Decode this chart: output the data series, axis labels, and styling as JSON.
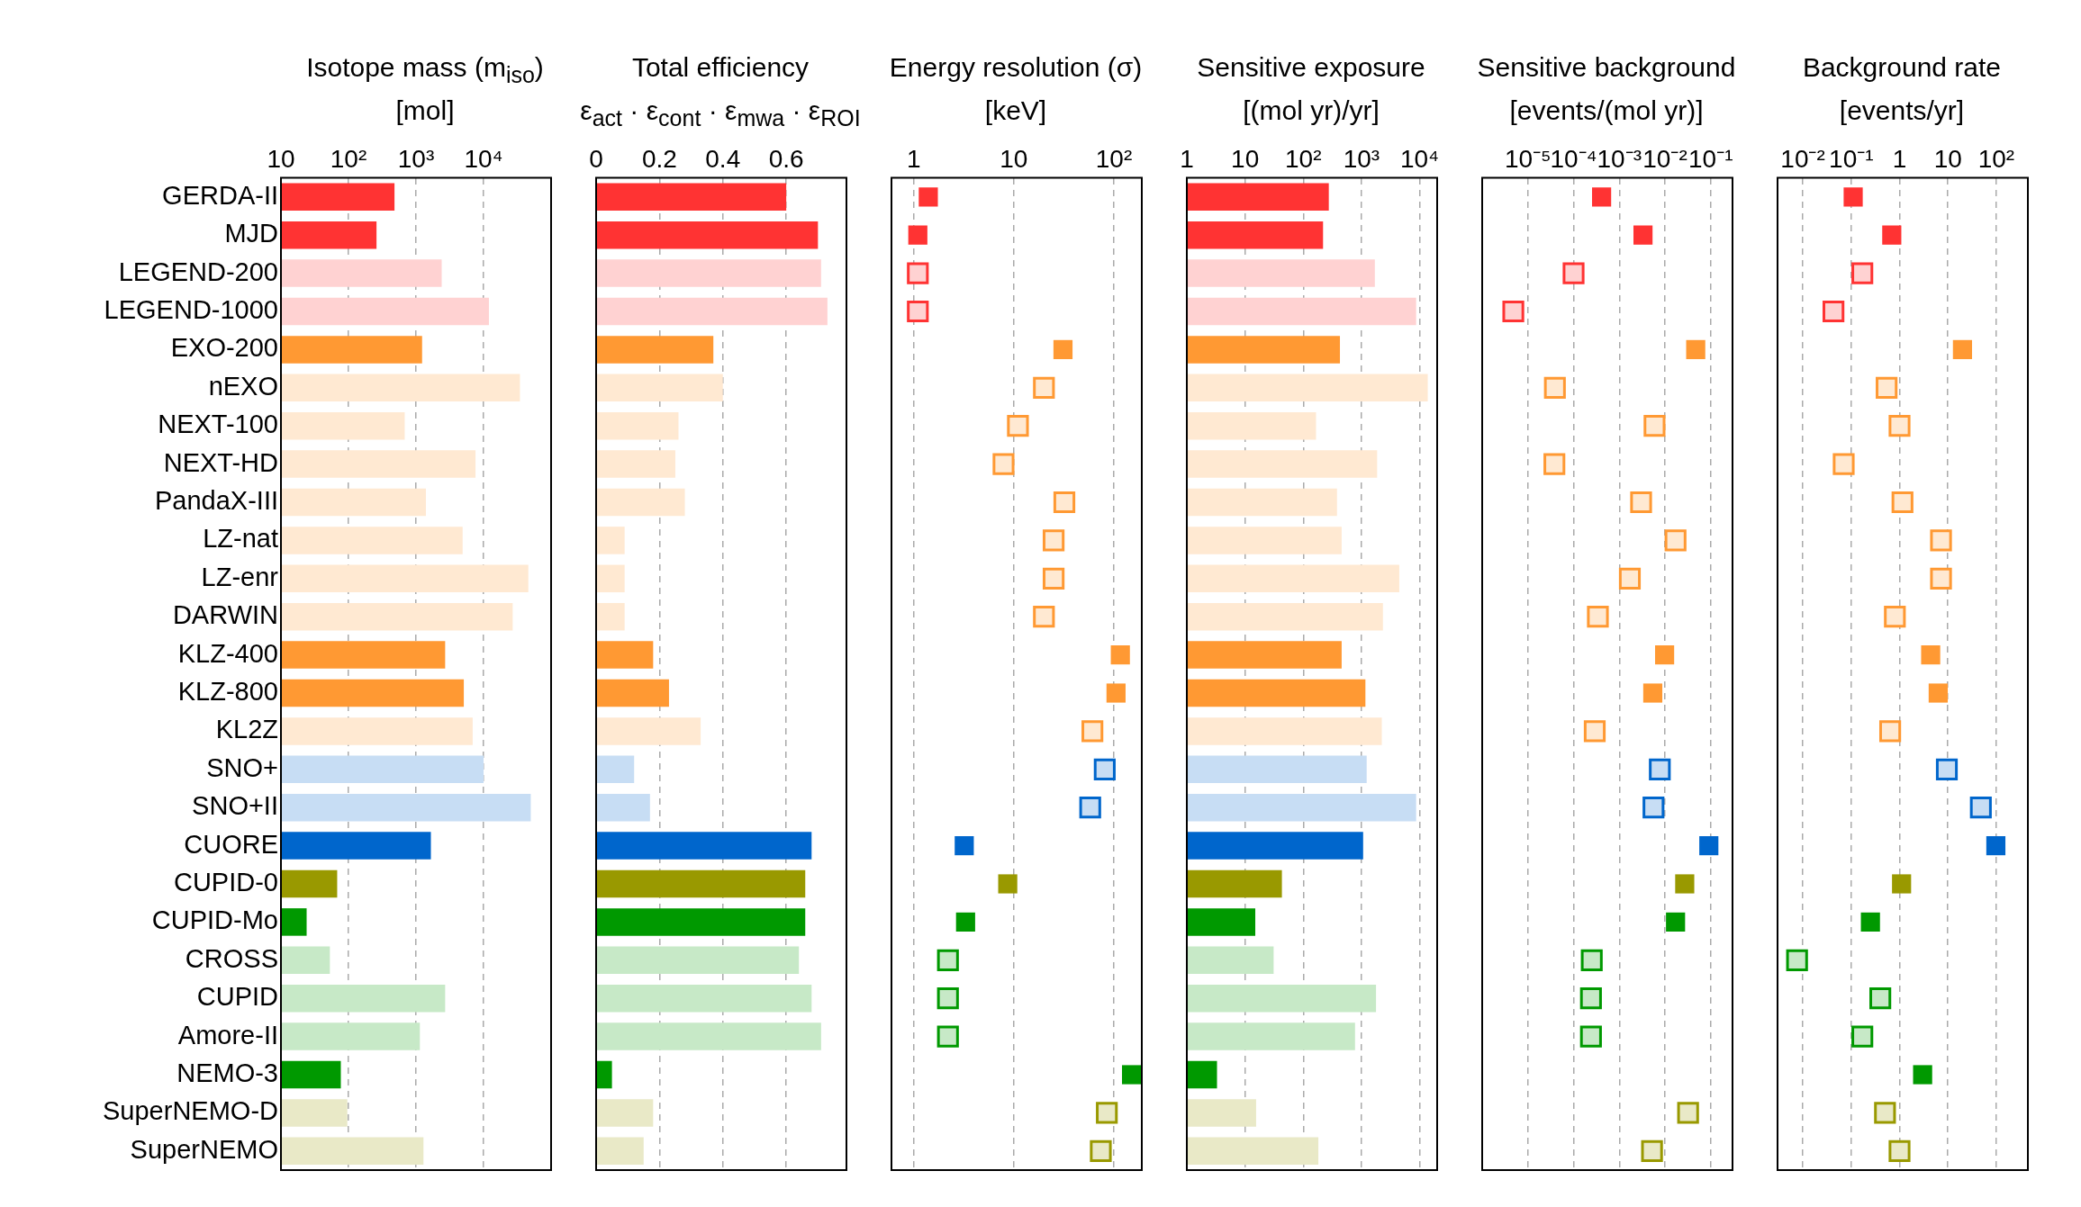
{
  "chart_data": [
    {
      "type": "bar",
      "orientation": "horizontal",
      "title": "Isotope mass (m$_{iso}$)",
      "subtitle": "[mol]",
      "categories": [
        "GERDA-II",
        "MJD",
        "LEGEND-200",
        "LEGEND-1000",
        "EXO-200",
        "nEXO",
        "NEXT-100",
        "NEXT-HD",
        "PandaX-III",
        "LZ-nat",
        "LZ-enr",
        "DARWIN",
        "KLZ-400",
        "KLZ-800",
        "KL2Z",
        "SNO+",
        "SNO+II",
        "CUORE",
        "CUPID-0",
        "CUPID-Mo",
        "CROSS",
        "CUPID",
        "Amore-II",
        "NEMO-3",
        "SuperNEMO-D",
        "SuperNEMO"
      ],
      "log": "x",
      "xlim": [
        10,
        100000
      ],
      "xticks": [
        10,
        {
          "value": 100,
          "label": "10²"
        },
        {
          "value": 1000,
          "label": "10³"
        },
        {
          "value": 10000,
          "label": "10⁴"
        }
      ],
      "grid": "x",
      "series": [
        {
          "colors": [
            "#ff3333",
            "#ff3333",
            "#ff3333",
            "#ff3333",
            "#ff9933",
            "#ff9933",
            "#ff9933",
            "#ff9933",
            "#ff9933",
            "#ff9933",
            "#ff9933",
            "#ff9933",
            "#ff9933",
            "#ff9933",
            "#ff9933",
            "#0066cc",
            "#0066cc",
            "#0066cc",
            "#999900",
            "#009900",
            "#009900",
            "#009900",
            "#009900",
            "#009900",
            "#999900",
            "#999900"
          ],
          "values": [
            480,
            260,
            null,
            null,
            1230,
            null,
            null,
            null,
            null,
            null,
            null,
            null,
            2700,
            5100,
            null,
            null,
            null,
            1660,
            68,
            24,
            null,
            null,
            null,
            77,
            null,
            null
          ]
        },
        {
          "colors": [
            "#ffd2d2",
            "#ffd2d2",
            "#ffd2d2",
            "#ffd2d2",
            "#ffe9d2",
            "#ffe9d2",
            "#ffe9d2",
            "#ffe9d2",
            "#ffe9d2",
            "#ffe9d2",
            "#ffe9d2",
            "#ffe9d2",
            "#ffe9d2",
            "#ffe9d2",
            "#ffe9d2",
            "#c7ddf4",
            "#c7ddf4",
            "#c7ddf4",
            "#e9e9c7",
            "#c7e9c7",
            "#c7e9c7",
            "#c7e9c7",
            "#c7e9c7",
            "#c7e9c7",
            "#e9e9c7",
            "#e9e9c7"
          ],
          "values": [
            null,
            null,
            2400,
            12000,
            null,
            34600,
            680,
            7600,
            1400,
            4900,
            46000,
            27000,
            null,
            null,
            6900,
            10000,
            50000,
            null,
            null,
            null,
            53,
            2700,
            1140,
            null,
            96,
            1290
          ]
        }
      ]
    },
    {
      "type": "bar",
      "orientation": "horizontal",
      "title": "Total efficiency",
      "subtitle": "ε$_{act}$ · ε$_{cont}$ · ε$_{mwa}$ · ε$_{ROI}$",
      "categories": [
        null,
        null,
        null,
        null,
        null,
        null,
        null,
        null,
        null,
        null,
        null,
        null,
        null,
        null,
        null,
        null,
        null,
        null,
        null,
        null,
        null,
        null,
        null,
        null,
        null,
        null
      ],
      "xlim": [
        0,
        0.79
      ],
      "xticks": [
        0,
        0.2,
        0.4,
        0.6
      ],
      "grid": "x",
      "tick_labels": "x",
      "series": [
        {
          "colors": [
            "#ff3333",
            "#ff3333",
            "#ff3333",
            "#ff3333",
            "#ff9933",
            "#ff9933",
            "#ff9933",
            "#ff9933",
            "#ff9933",
            "#ff9933",
            "#ff9933",
            "#ff9933",
            "#ff9933",
            "#ff9933",
            "#ff9933",
            "#0066cc",
            "#0066cc",
            "#0066cc",
            "#999900",
            "#009900",
            "#009900",
            "#009900",
            "#009900",
            "#009900",
            "#999900",
            "#999900"
          ],
          "values": [
            0.6,
            0.7,
            null,
            null,
            0.37,
            null,
            null,
            null,
            null,
            null,
            null,
            null,
            0.18,
            0.23,
            null,
            null,
            null,
            0.68,
            0.66,
            0.66,
            null,
            null,
            null,
            0.05,
            null,
            null
          ]
        },
        {
          "colors": [
            "#ffd2d2",
            "#ffd2d2",
            "#ffd2d2",
            "#ffd2d2",
            "#ffe9d2",
            "#ffe9d2",
            "#ffe9d2",
            "#ffe9d2",
            "#ffe9d2",
            "#ffe9d2",
            "#ffe9d2",
            "#ffe9d2",
            "#ffe9d2",
            "#ffe9d2",
            "#ffe9d2",
            "#c7ddf4",
            "#c7ddf4",
            "#c7ddf4",
            "#e9e9c7",
            "#c7e9c7",
            "#c7e9c7",
            "#c7e9c7",
            "#c7e9c7",
            "#c7e9c7",
            "#e9e9c7",
            "#e9e9c7"
          ],
          "values": [
            null,
            null,
            0.71,
            0.73,
            null,
            0.4,
            0.26,
            0.25,
            0.28,
            0.09,
            0.09,
            0.09,
            null,
            null,
            0.33,
            0.12,
            0.17,
            null,
            null,
            null,
            0.64,
            0.68,
            0.71,
            null,
            0.18,
            0.15
          ]
        }
      ]
    },
    {
      "type": "scatter",
      "orientation": "horizontal",
      "marker": "square",
      "title": "Energy resolution (σ)",
      "subtitle": "[keV]",
      "categories": [
        null,
        null,
        null,
        null,
        null,
        null,
        null,
        null,
        null,
        null,
        null,
        null,
        null,
        null,
        null,
        null,
        null,
        null,
        null,
        null,
        null,
        null,
        null,
        null,
        null,
        null
      ],
      "log": "x",
      "xlim": [
        0.6,
        190
      ],
      "xticks": [
        1,
        10,
        {
          "value": 100,
          "label": "10²"
        }
      ],
      "grid": "x",
      "tick_labels": "x",
      "series": [
        {
          "colors": [
            "#ff3333",
            "#ff3333",
            "#ff3333",
            "#ff3333",
            "#ff9933",
            "#ff9933",
            "#ff9933",
            "#ff9933",
            "#ff9933",
            "#ff9933",
            "#ff9933",
            "#ff9933",
            "#ff9933",
            "#ff9933",
            "#ff9933",
            "#0066cc",
            "#0066cc",
            "#0066cc",
            "#999900",
            "#009900",
            "#009900",
            "#009900",
            "#009900",
            "#009900",
            "#999900",
            "#999900"
          ],
          "values": [
            1.4,
            1.1,
            null,
            null,
            31,
            null,
            null,
            null,
            null,
            null,
            null,
            null,
            116,
            105,
            null,
            null,
            null,
            3.2,
            8.7,
            3.3,
            null,
            null,
            null,
            150,
            null,
            null
          ]
        },
        {
          "colors": [
            "#ff3333",
            "#ff3333",
            "#ff3333",
            "#ff3333",
            "#ff9933",
            "#ff9933",
            "#ff9933",
            "#ff9933",
            "#ff9933",
            "#ff9933",
            "#ff9933",
            "#ff9933",
            "#ff9933",
            "#ff9933",
            "#ff9933",
            "#0066cc",
            "#0066cc",
            "#0066cc",
            "#999900",
            "#009900",
            "#009900",
            "#009900",
            "#009900",
            "#009900",
            "#999900",
            "#999900"
          ],
          "values": [
            null,
            null,
            1.1,
            1.1,
            null,
            20,
            11,
            7.9,
            32,
            25,
            25,
            20,
            null,
            null,
            61,
            81,
            58,
            null,
            null,
            null,
            2.2,
            2.2,
            2.2,
            null,
            85,
            74
          ]
        }
      ]
    },
    {
      "type": "bar",
      "orientation": "horizontal",
      "title": "Sensitive exposure",
      "subtitle": "[(mol yr)/yr]",
      "categories": [
        null,
        null,
        null,
        null,
        null,
        null,
        null,
        null,
        null,
        null,
        null,
        null,
        null,
        null,
        null,
        null,
        null,
        null,
        null,
        null,
        null,
        null,
        null,
        null,
        null,
        null
      ],
      "log": "x",
      "xlim": [
        1,
        20000
      ],
      "xticks": [
        1,
        10,
        {
          "value": 100,
          "label": "10²"
        },
        {
          "value": 1000,
          "label": "10³"
        },
        {
          "value": 10000,
          "label": "10⁴"
        }
      ],
      "grid": "x",
      "tick_labels": "x",
      "series": [
        {
          "colors": [
            "#ff3333",
            "#ff3333",
            "#ff3333",
            "#ff3333",
            "#ff9933",
            "#ff9933",
            "#ff9933",
            "#ff9933",
            "#ff9933",
            "#ff9933",
            "#ff9933",
            "#ff9933",
            "#ff9933",
            "#ff9933",
            "#ff9933",
            "#0066cc",
            "#0066cc",
            "#0066cc",
            "#999900",
            "#009900",
            "#009900",
            "#009900",
            "#009900",
            "#009900",
            "#999900",
            "#999900"
          ],
          "values": [
            275,
            219,
            null,
            null,
            427,
            null,
            null,
            null,
            null,
            null,
            null,
            null,
            457,
            1170,
            null,
            null,
            null,
            1070,
            43,
            15,
            null,
            null,
            null,
            3.3,
            null,
            null
          ]
        },
        {
          "colors": [
            "#ffd2d2",
            "#ffd2d2",
            "#ffd2d2",
            "#ffd2d2",
            "#ffe9d2",
            "#ffe9d2",
            "#ffe9d2",
            "#ffe9d2",
            "#ffe9d2",
            "#ffe9d2",
            "#ffe9d2",
            "#ffe9d2",
            "#ffe9d2",
            "#ffe9d2",
            "#ffe9d2",
            "#c7ddf4",
            "#c7ddf4",
            "#c7ddf4",
            "#e9e9c7",
            "#c7e9c7",
            "#c7e9c7",
            "#c7e9c7",
            "#c7e9c7",
            "#c7e9c7",
            "#e9e9c7",
            "#e9e9c7"
          ],
          "values": [
            null,
            null,
            1700,
            8700,
            null,
            13800,
            166,
            1860,
            380,
            457,
            4470,
            2340,
            null,
            null,
            2240,
            1230,
            8700,
            null,
            null,
            null,
            31,
            1780,
            776,
            null,
            15.5,
            182
          ]
        }
      ]
    },
    {
      "type": "scatter",
      "orientation": "horizontal",
      "marker": "square",
      "title": "Sensitive background",
      "subtitle": "[events/(mol yr)]",
      "categories": [
        null,
        null,
        null,
        null,
        null,
        null,
        null,
        null,
        null,
        null,
        null,
        null,
        null,
        null,
        null,
        null,
        null,
        null,
        null,
        null,
        null,
        null,
        null,
        null,
        null,
        null
      ],
      "log": "x",
      "xlim": [
        1e-06,
        0.3
      ],
      "xticks": [
        {
          "value": 1e-05,
          "label": "10⁻⁵"
        },
        {
          "value": 0.0001,
          "label": "10⁻⁴"
        },
        {
          "value": 0.001,
          "label": "10⁻³"
        },
        {
          "value": 0.01,
          "label": "10⁻²"
        },
        {
          "value": 0.1,
          "label": "10⁻¹"
        }
      ],
      "grid": "x",
      "tick_labels": "x",
      "series": [
        {
          "colors": [
            "#ff3333",
            "#ff3333",
            "#ff3333",
            "#ff3333",
            "#ff9933",
            "#ff9933",
            "#ff9933",
            "#ff9933",
            "#ff9933",
            "#ff9933",
            "#ff9933",
            "#ff9933",
            "#ff9933",
            "#ff9933",
            "#ff9933",
            "#0066cc",
            "#0066cc",
            "#0066cc",
            "#999900",
            "#009900",
            "#009900",
            "#009900",
            "#009900",
            "#009900",
            "#999900",
            "#999900"
          ],
          "values": [
            0.00041,
            0.0033,
            null,
            null,
            0.047,
            null,
            null,
            null,
            null,
            null,
            null,
            null,
            0.0098,
            0.0054,
            null,
            null,
            null,
            0.091,
            0.027,
            0.017,
            null,
            null,
            null,
            null,
            null,
            null
          ]
        },
        {
          "colors": [
            "#ff3333",
            "#ff3333",
            "#ff3333",
            "#ff3333",
            "#ff9933",
            "#ff9933",
            "#ff9933",
            "#ff9933",
            "#ff9933",
            "#ff9933",
            "#ff9933",
            "#ff9933",
            "#ff9933",
            "#ff9933",
            "#ff9933",
            "#0066cc",
            "#0066cc",
            "#0066cc",
            "#999900",
            "#009900",
            "#009900",
            "#009900",
            "#009900",
            "#009900",
            "#999900",
            "#999900"
          ],
          "values": [
            null,
            null,
            0.0001,
            4.8e-06,
            null,
            3.9e-05,
            0.0059,
            3.8e-05,
            0.003,
            0.017,
            0.0017,
            0.00034,
            null,
            null,
            0.00029,
            0.0077,
            0.0056,
            null,
            null,
            null,
            0.00025,
            0.00024,
            0.00024,
            null,
            0.032,
            0.0052
          ]
        }
      ]
    },
    {
      "type": "scatter",
      "orientation": "horizontal",
      "marker": "square",
      "title": "Background rate",
      "subtitle": "[events/yr]",
      "categories": [
        null,
        null,
        null,
        null,
        null,
        null,
        null,
        null,
        null,
        null,
        null,
        null,
        null,
        null,
        null,
        null,
        null,
        null,
        null,
        null,
        null,
        null,
        null,
        null,
        null,
        null
      ],
      "log": "x",
      "xlim": [
        0.003,
        450
      ],
      "xticks": [
        {
          "value": 0.01,
          "label": "10⁻²"
        },
        {
          "value": 0.1,
          "label": "10⁻¹"
        },
        1,
        10,
        {
          "value": 100,
          "label": "10²"
        }
      ],
      "grid": "x",
      "tick_labels": "x",
      "series": [
        {
          "colors": [
            "#ff3333",
            "#ff3333",
            "#ff3333",
            "#ff3333",
            "#ff9933",
            "#ff9933",
            "#ff9933",
            "#ff9933",
            "#ff9933",
            "#ff9933",
            "#ff9933",
            "#ff9933",
            "#ff9933",
            "#ff9933",
            "#ff9933",
            "#0066cc",
            "#0066cc",
            "#0066cc",
            "#999900",
            "#009900",
            "#009900",
            "#009900",
            "#009900",
            "#009900",
            "#999900",
            "#999900"
          ],
          "values": [
            0.11,
            0.69,
            null,
            null,
            20,
            null,
            null,
            null,
            null,
            null,
            null,
            null,
            4.4,
            6.3,
            null,
            null,
            null,
            98,
            1.1,
            0.25,
            null,
            null,
            null,
            3.0,
            null,
            null
          ]
        },
        {
          "colors": [
            "#ff3333",
            "#ff3333",
            "#ff3333",
            "#ff3333",
            "#ff9933",
            "#ff9933",
            "#ff9933",
            "#ff9933",
            "#ff9933",
            "#ff9933",
            "#ff9933",
            "#ff9933",
            "#ff9933",
            "#ff9933",
            "#ff9933",
            "#0066cc",
            "#0066cc",
            "#0066cc",
            "#999900",
            "#009900",
            "#009900",
            "#009900",
            "#009900",
            "#009900",
            "#999900",
            "#999900"
          ],
          "values": [
            null,
            null,
            0.17,
            0.043,
            null,
            0.54,
            1.0,
            0.07,
            1.15,
            7.2,
            7.2,
            0.8,
            null,
            null,
            0.64,
            9.5,
            48,
            null,
            null,
            null,
            0.0076,
            0.4,
            0.17,
            null,
            0.5,
            1.0
          ]
        }
      ]
    }
  ]
}
